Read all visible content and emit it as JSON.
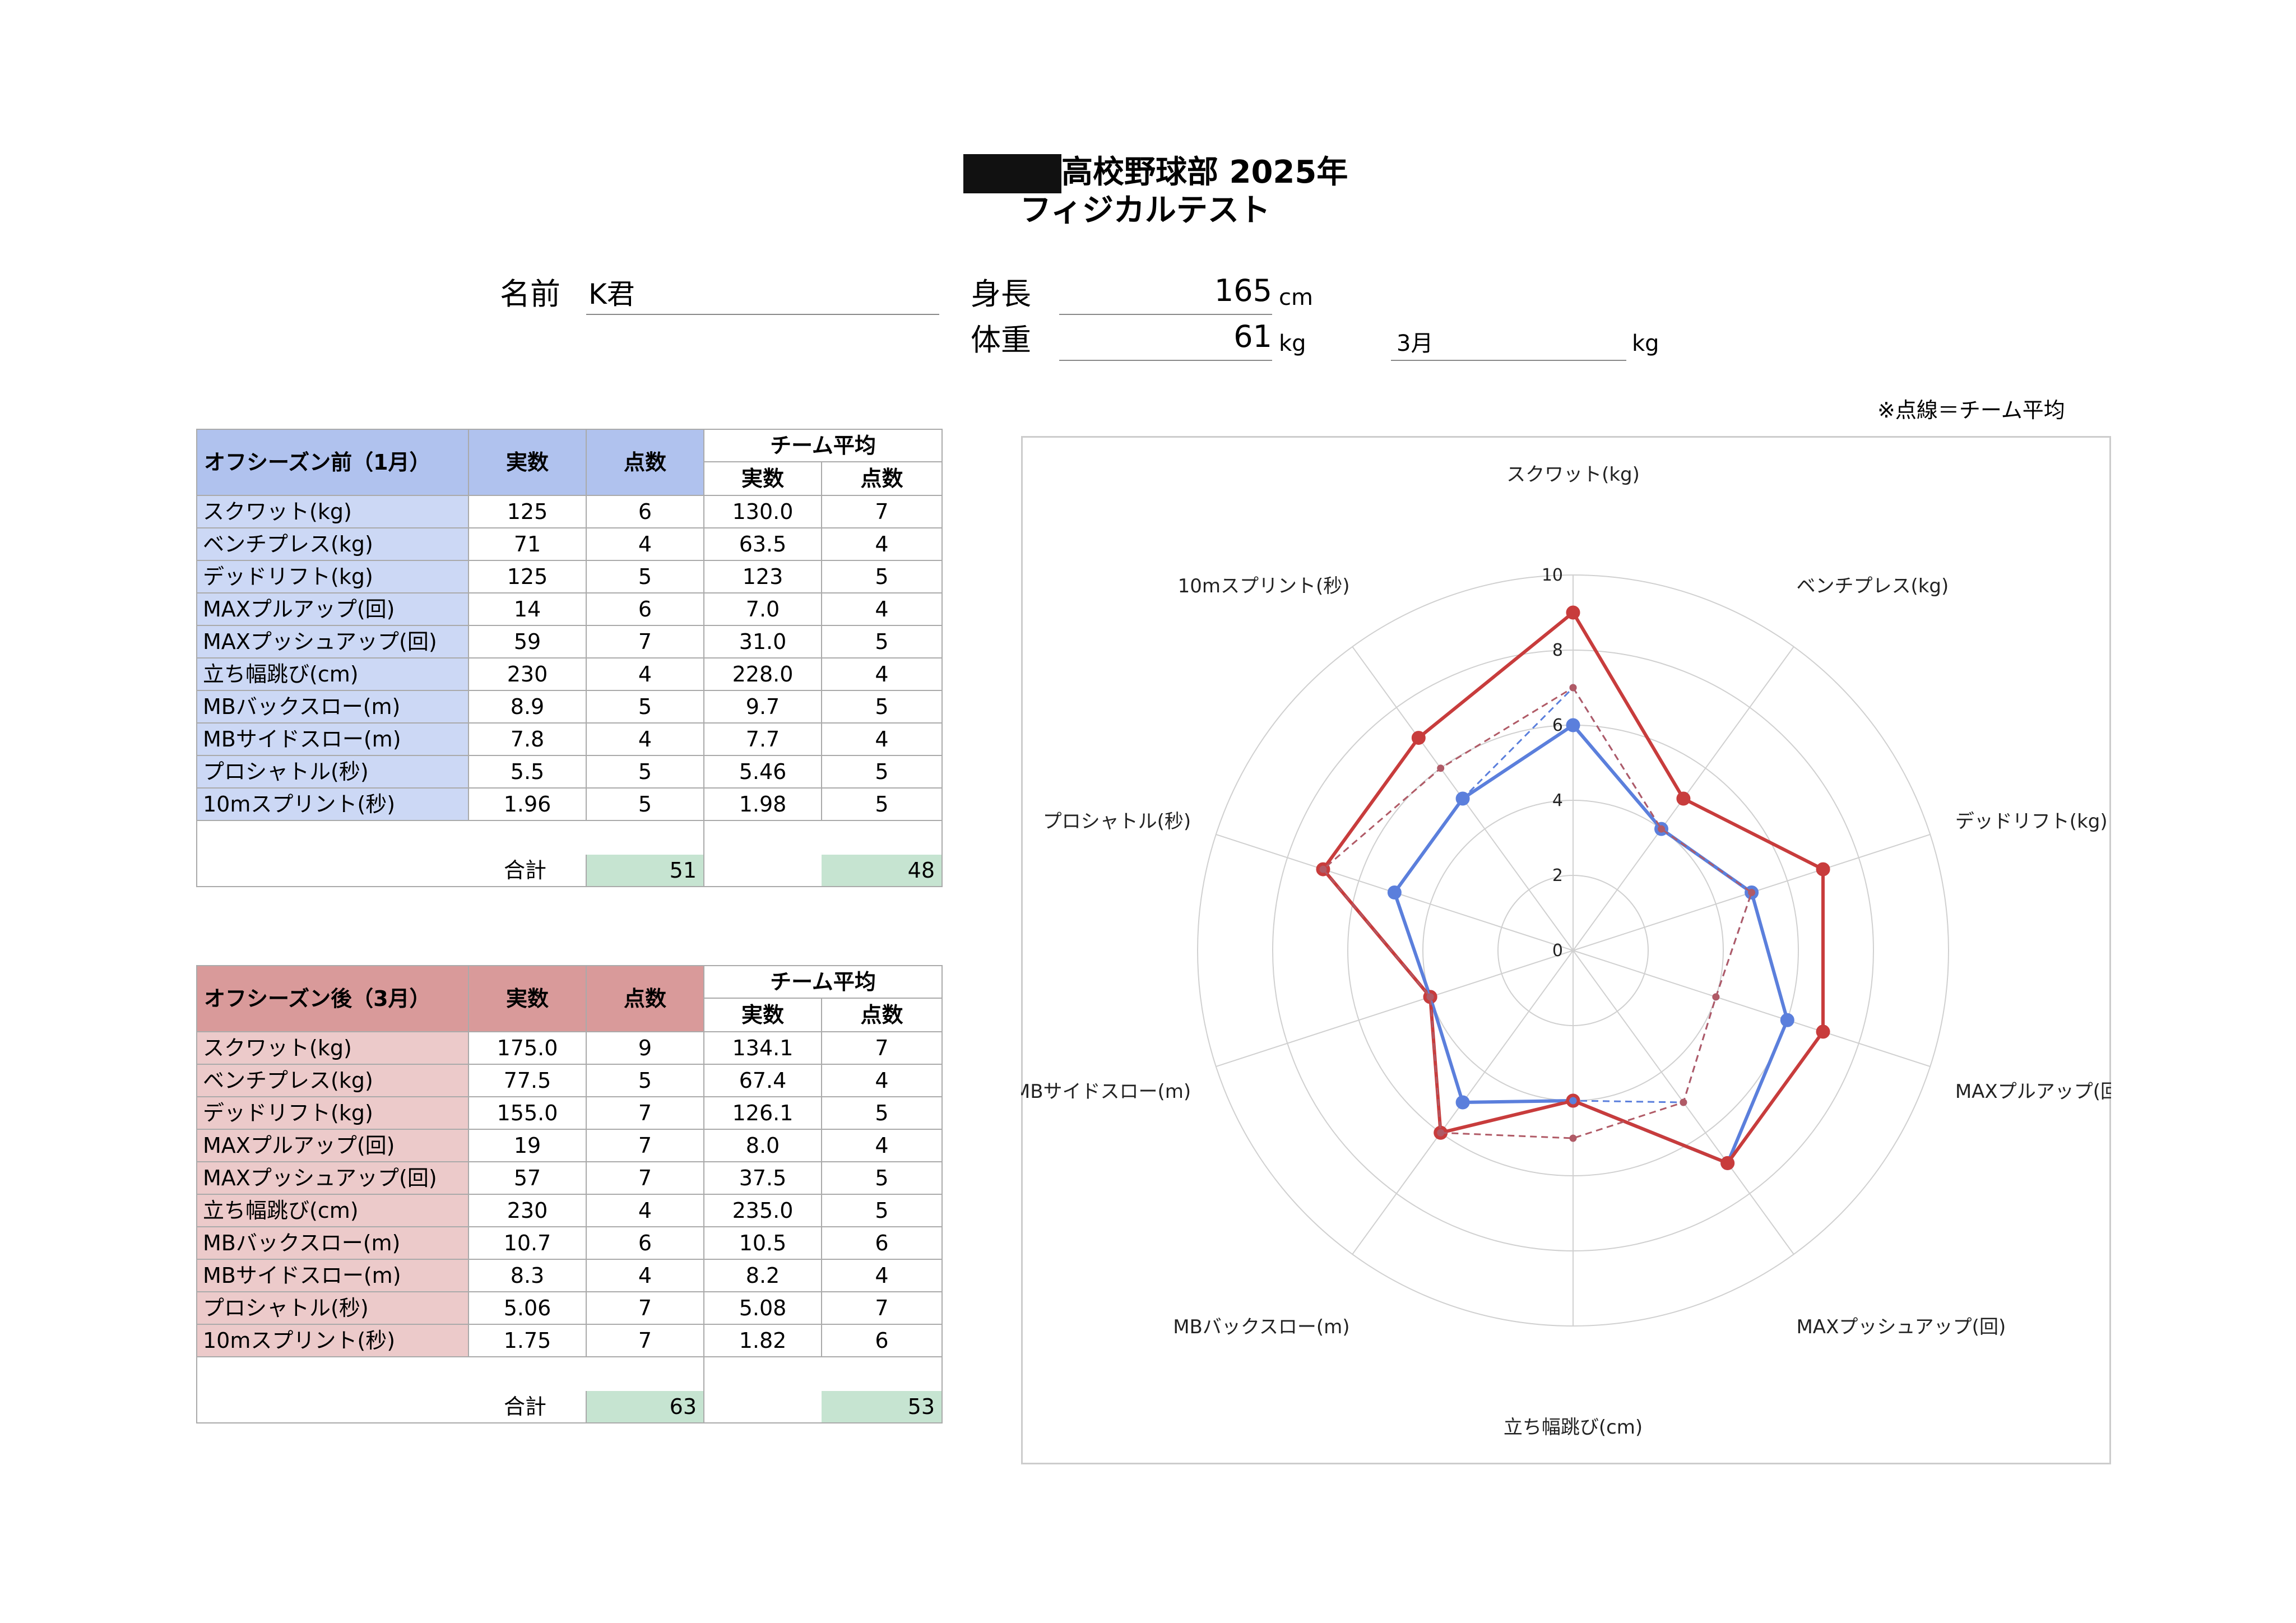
{
  "header": {
    "title": "高校野球部 2025年",
    "subtitle": "フィジカルテスト"
  },
  "info": {
    "name_label": "名前",
    "name_value": "K君",
    "height_label": "身長",
    "height_value": "165",
    "height_unit": "cm",
    "weight_label": "体重",
    "weight_value": "61",
    "weight_unit": "kg",
    "weight2_month": "3月",
    "weight2_unit": "kg"
  },
  "chart_note": "※点線＝チーム平均",
  "pre": {
    "title": "オフシーズン前（1月）",
    "col_actual": "実数",
    "col_score": "点数",
    "team_avg": "チーム平均",
    "team_actual": "実数",
    "team_score": "点数",
    "rows": [
      {
        "item": "スクワット(kg)",
        "actual": "125",
        "score": "6",
        "team_actual": "130.0",
        "team_score": "7"
      },
      {
        "item": "ベンチプレス(kg)",
        "actual": "71",
        "score": "4",
        "team_actual": "63.5",
        "team_score": "4"
      },
      {
        "item": "デッドリフト(kg)",
        "actual": "125",
        "score": "5",
        "team_actual": "123",
        "team_score": "5"
      },
      {
        "item": "MAXプルアップ(回)",
        "actual": "14",
        "score": "6",
        "team_actual": "7.0",
        "team_score": "4"
      },
      {
        "item": "MAXプッシュアップ(回)",
        "actual": "59",
        "score": "7",
        "team_actual": "31.0",
        "team_score": "5"
      },
      {
        "item": "立ち幅跳び(cm)",
        "actual": "230",
        "score": "4",
        "team_actual": "228.0",
        "team_score": "4"
      },
      {
        "item": "MBバックスロー(m)",
        "actual": "8.9",
        "score": "5",
        "team_actual": "9.7",
        "team_score": "5"
      },
      {
        "item": "MBサイドスロー(m)",
        "actual": "7.8",
        "score": "4",
        "team_actual": "7.7",
        "team_score": "4"
      },
      {
        "item": "プロシャトル(秒)",
        "actual": "5.5",
        "score": "5",
        "team_actual": "5.46",
        "team_score": "5"
      },
      {
        "item": "10mスプリント(秒)",
        "actual": "1.96",
        "score": "5",
        "team_actual": "1.98",
        "team_score": "5"
      }
    ],
    "total_label": "合計",
    "total": "51",
    "team_total": "48"
  },
  "post": {
    "title": "オフシーズン後（3月）",
    "col_actual": "実数",
    "col_score": "点数",
    "team_avg": "チーム平均",
    "team_actual": "実数",
    "team_score": "点数",
    "rows": [
      {
        "item": "スクワット(kg)",
        "actual": "175.0",
        "score": "9",
        "team_actual": "134.1",
        "team_score": "7"
      },
      {
        "item": "ベンチプレス(kg)",
        "actual": "77.5",
        "score": "5",
        "team_actual": "67.4",
        "team_score": "4"
      },
      {
        "item": "デッドリフト(kg)",
        "actual": "155.0",
        "score": "7",
        "team_actual": "126.1",
        "team_score": "5"
      },
      {
        "item": "MAXプルアップ(回)",
        "actual": "19",
        "score": "7",
        "team_actual": "8.0",
        "team_score": "4"
      },
      {
        "item": "MAXプッシュアップ(回)",
        "actual": "57",
        "score": "7",
        "team_actual": "37.5",
        "team_score": "5"
      },
      {
        "item": "立ち幅跳び(cm)",
        "actual": "230",
        "score": "4",
        "team_actual": "235.0",
        "team_score": "5"
      },
      {
        "item": "MBバックスロー(m)",
        "actual": "10.7",
        "score": "6",
        "team_actual": "10.5",
        "team_score": "6"
      },
      {
        "item": "MBサイドスロー(m)",
        "actual": "8.3",
        "score": "4",
        "team_actual": "8.2",
        "team_score": "4"
      },
      {
        "item": "プロシャトル(秒)",
        "actual": "5.06",
        "score": "7",
        "team_actual": "5.08",
        "team_score": "7"
      },
      {
        "item": "10mスプリント(秒)",
        "actual": "1.75",
        "score": "7",
        "team_actual": "1.82",
        "team_score": "6"
      }
    ],
    "total_label": "合計",
    "total": "63",
    "team_total": "53"
  },
  "chart_data": {
    "type": "radar",
    "axes": [
      "スクワット(kg)",
      "ベンチプレス(kg)",
      "デッドリフト(kg)",
      "MAXプルアップ(回)",
      "MAXプッシュアップ(回)",
      "立ち幅跳び(cm)",
      "MBバックスロー(m)",
      "MBサイドスロー(m)",
      "プロシャトル(秒)",
      "10mスプリント(秒)"
    ],
    "range": [
      0,
      10
    ],
    "ticks": [
      0,
      2,
      4,
      6,
      8,
      10
    ],
    "series": [
      {
        "values": [
          6,
          4,
          5,
          6,
          7,
          4,
          5,
          4,
          5,
          5
        ],
        "color": "#5b7fdc",
        "style": "solid"
      },
      {
        "values": [
          9,
          5,
          7,
          7,
          7,
          4,
          6,
          4,
          7,
          7
        ],
        "color": "#c83c3c",
        "style": "solid"
      },
      {
        "values": [
          7,
          4,
          5,
          4,
          5,
          4,
          5,
          4,
          5,
          5
        ],
        "color": "#5b7fdc",
        "style": "dashed"
      },
      {
        "values": [
          7,
          4,
          5,
          4,
          5,
          5,
          6,
          4,
          7,
          6
        ],
        "color": "#b05a66",
        "style": "dashed"
      }
    ]
  }
}
